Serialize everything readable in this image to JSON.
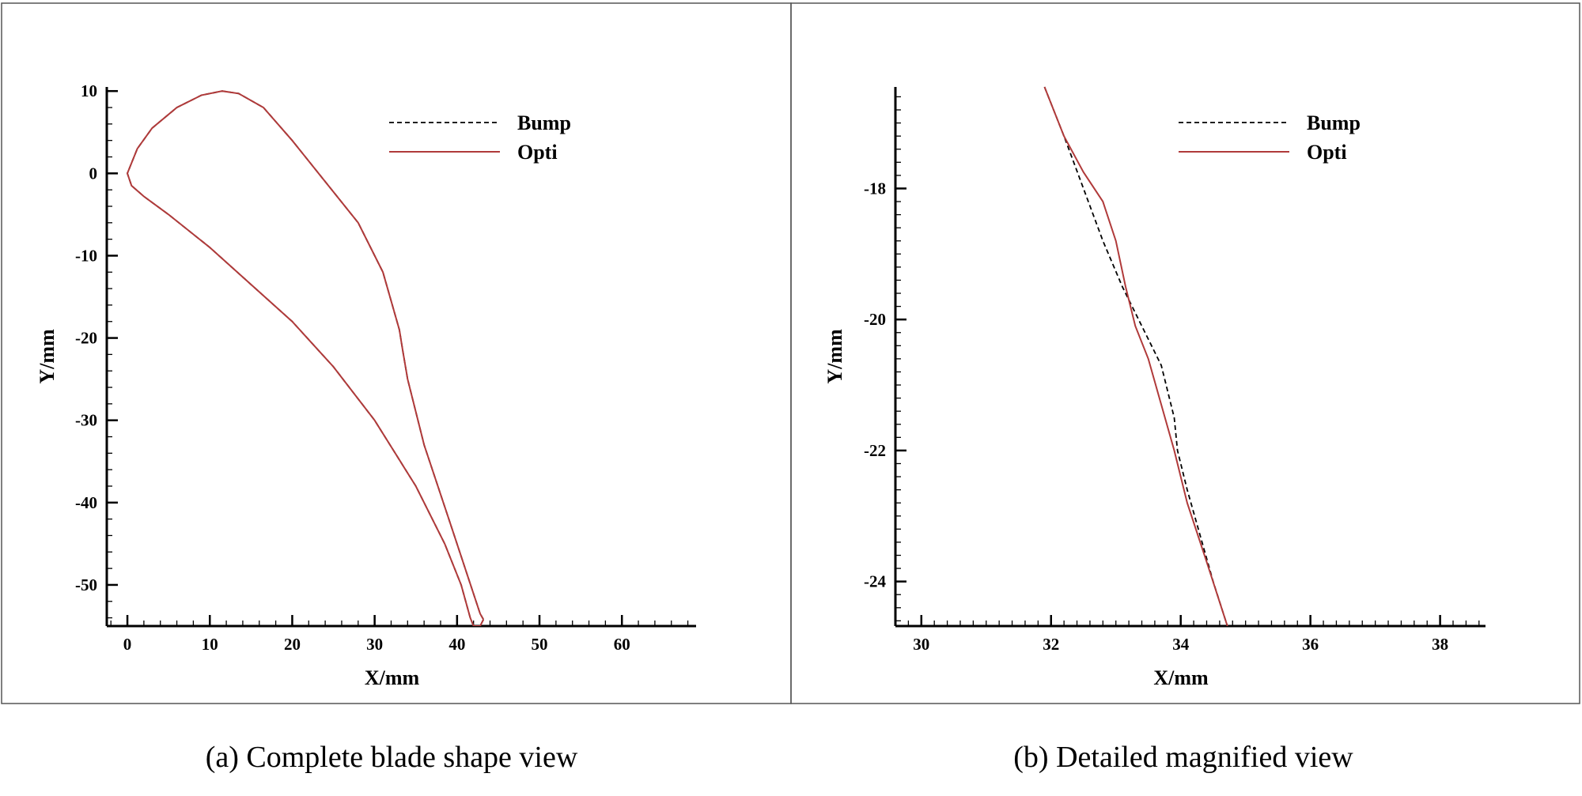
{
  "chart_data": [
    {
      "type": "line",
      "title": "",
      "xlabel": "X/mm",
      "ylabel": "Y/mm",
      "xlim": [
        -2.5,
        69
      ],
      "ylim": [
        -55,
        10.5
      ],
      "xticks": [
        0,
        10,
        20,
        30,
        40,
        50,
        60
      ],
      "yticks": [
        10,
        0,
        -10,
        -20,
        -30,
        -40,
        -50
      ],
      "grid": false,
      "legend_position": "top-right",
      "caption": "(a) Complete blade shape view",
      "series": [
        {
          "name": "Bump",
          "style": "dashed",
          "color": "#000000",
          "points": [
            [
              43.2,
              -54.2
            ],
            [
              42.8,
              -53.5
            ],
            [
              39,
              -42
            ],
            [
              36,
              -33
            ],
            [
              34,
              -25
            ],
            [
              33.4,
              -21.5
            ],
            [
              33,
              -19
            ],
            [
              31,
              -12
            ],
            [
              28,
              -6
            ],
            [
              24,
              -1
            ],
            [
              20,
              4
            ],
            [
              16.5,
              8
            ],
            [
              13.5,
              9.7
            ],
            [
              11.5,
              10
            ],
            [
              9,
              9.5
            ],
            [
              6,
              8
            ],
            [
              3,
              5.5
            ],
            [
              1.2,
              3
            ],
            [
              0.2,
              0.5
            ],
            [
              0,
              0
            ],
            [
              0.5,
              -1.5
            ],
            [
              2,
              -2.8
            ],
            [
              5,
              -5
            ],
            [
              10,
              -9
            ],
            [
              15,
              -13.5
            ],
            [
              20,
              -18
            ],
            [
              25,
              -23.5
            ],
            [
              30,
              -30
            ],
            [
              35,
              -38
            ],
            [
              38.5,
              -45
            ],
            [
              40.5,
              -50
            ],
            [
              41.6,
              -54
            ],
            [
              42,
              -55
            ],
            [
              42.8,
              -55
            ],
            [
              43.2,
              -54.2
            ]
          ]
        },
        {
          "name": "Opti",
          "style": "solid",
          "color": "#b03a3a",
          "points": [
            [
              43.2,
              -54.2
            ],
            [
              42.8,
              -53.5
            ],
            [
              39,
              -42
            ],
            [
              36,
              -33
            ],
            [
              34,
              -25
            ],
            [
              33.4,
              -21.5
            ],
            [
              33,
              -19
            ],
            [
              31,
              -12
            ],
            [
              28,
              -6
            ],
            [
              24,
              -1
            ],
            [
              20,
              4
            ],
            [
              16.5,
              8
            ],
            [
              13.5,
              9.7
            ],
            [
              11.5,
              10
            ],
            [
              9,
              9.5
            ],
            [
              6,
              8
            ],
            [
              3,
              5.5
            ],
            [
              1.2,
              3
            ],
            [
              0.2,
              0.5
            ],
            [
              0,
              0
            ],
            [
              0.5,
              -1.5
            ],
            [
              2,
              -2.8
            ],
            [
              5,
              -5
            ],
            [
              10,
              -9
            ],
            [
              15,
              -13.5
            ],
            [
              20,
              -18
            ],
            [
              25,
              -23.5
            ],
            [
              30,
              -30
            ],
            [
              35,
              -38
            ],
            [
              38.5,
              -45
            ],
            [
              40.5,
              -50
            ],
            [
              41.6,
              -54
            ],
            [
              42,
              -55
            ],
            [
              42.8,
              -55
            ],
            [
              43.2,
              -54.2
            ]
          ]
        }
      ]
    },
    {
      "type": "line",
      "title": "",
      "xlabel": "X/mm",
      "ylabel": "Y/mm",
      "xlim": [
        29.6,
        38.7
      ],
      "ylim": [
        -24.68,
        -16.45
      ],
      "xticks": [
        30,
        32,
        34,
        36,
        38
      ],
      "yticks": [
        -18,
        -20,
        -22,
        -24
      ],
      "grid": false,
      "legend_position": "top-right",
      "caption": "(b) Detailed magnified view",
      "series": [
        {
          "name": "Bump",
          "style": "dashed",
          "color": "#000000",
          "points": [
            [
              31.9,
              -16.45
            ],
            [
              32.2,
              -17.2
            ],
            [
              32.5,
              -18.0
            ],
            [
              32.8,
              -18.8
            ],
            [
              33.1,
              -19.5
            ],
            [
              33.3,
              -19.9
            ],
            [
              33.5,
              -20.3
            ],
            [
              33.7,
              -20.7
            ],
            [
              33.8,
              -21.1
            ],
            [
              33.9,
              -21.5
            ],
            [
              33.95,
              -22.0
            ],
            [
              34.1,
              -22.6
            ],
            [
              34.3,
              -23.3
            ],
            [
              34.5,
              -24.0
            ],
            [
              34.72,
              -24.68
            ]
          ]
        },
        {
          "name": "Opti",
          "style": "solid",
          "color": "#b03a3a",
          "points": [
            [
              31.9,
              -16.45
            ],
            [
              32.2,
              -17.2
            ],
            [
              32.5,
              -17.75
            ],
            [
              32.8,
              -18.2
            ],
            [
              33.0,
              -18.8
            ],
            [
              33.15,
              -19.5
            ],
            [
              33.3,
              -20.1
            ],
            [
              33.5,
              -20.6
            ],
            [
              33.7,
              -21.3
            ],
            [
              33.9,
              -22.0
            ],
            [
              34.1,
              -22.8
            ],
            [
              34.4,
              -23.7
            ],
            [
              34.72,
              -24.68
            ]
          ]
        }
      ]
    }
  ]
}
